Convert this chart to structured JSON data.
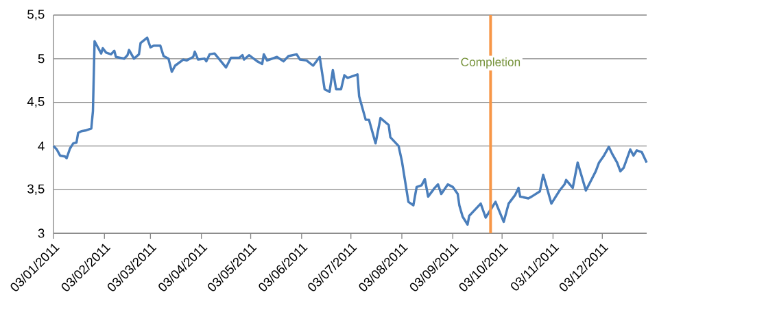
{
  "chart_data": {
    "type": "line",
    "x": [
      "2011-01-03",
      "2011-01-05",
      "2011-01-07",
      "2011-01-10",
      "2011-01-11",
      "2011-01-13",
      "2011-01-15",
      "2011-01-17",
      "2011-01-18",
      "2011-01-20",
      "2011-01-23",
      "2011-01-26",
      "2011-01-27",
      "2011-01-28",
      "2011-02-01",
      "2011-02-02",
      "2011-02-04",
      "2011-02-07",
      "2011-02-09",
      "2011-02-10",
      "2011-02-15",
      "2011-02-17",
      "2011-02-18",
      "2011-02-21",
      "2011-02-24",
      "2011-02-25",
      "2011-03-01",
      "2011-03-03",
      "2011-03-05",
      "2011-03-09",
      "2011-03-11",
      "2011-03-14",
      "2011-03-16",
      "2011-03-18",
      "2011-03-23",
      "2011-03-25",
      "2011-03-29",
      "2011-03-30",
      "2011-04-01",
      "2011-04-05",
      "2011-04-06",
      "2011-04-08",
      "2011-04-11",
      "2011-04-18",
      "2011-04-21",
      "2011-04-26",
      "2011-04-28",
      "2011-04-29",
      "2011-05-02",
      "2011-05-07",
      "2011-05-10",
      "2011-05-11",
      "2011-05-13",
      "2011-05-19",
      "2011-05-23",
      "2011-05-26",
      "2011-05-31",
      "2011-06-02",
      "2011-06-06",
      "2011-06-10",
      "2011-06-14",
      "2011-06-17",
      "2011-06-20",
      "2011-06-22",
      "2011-06-24",
      "2011-06-27",
      "2011-06-29",
      "2011-07-01",
      "2011-07-07",
      "2011-07-08",
      "2011-07-12",
      "2011-07-14",
      "2011-07-18",
      "2011-07-21",
      "2011-07-26",
      "2011-07-27",
      "2011-08-01",
      "2011-08-03",
      "2011-08-07",
      "2011-08-10",
      "2011-08-12",
      "2011-08-15",
      "2011-08-17",
      "2011-08-19",
      "2011-08-23",
      "2011-08-25",
      "2011-08-27",
      "2011-08-31",
      "2011-09-03",
      "2011-09-06",
      "2011-09-07",
      "2011-09-09",
      "2011-09-12",
      "2011-09-13",
      "2011-09-16",
      "2011-09-20",
      "2011-09-23",
      "2011-09-27",
      "2011-09-29",
      "2011-10-04",
      "2011-10-07",
      "2011-10-11",
      "2011-10-13",
      "2011-10-14",
      "2011-10-19",
      "2011-10-21",
      "2011-10-26",
      "2011-10-28",
      "2011-10-30",
      "2011-11-02",
      "2011-11-07",
      "2011-11-10",
      "2011-11-11",
      "2011-11-15",
      "2011-11-18",
      "2011-11-23",
      "2011-11-26",
      "2011-11-29",
      "2011-12-01",
      "2011-12-04",
      "2011-12-07",
      "2011-12-09",
      "2011-12-12",
      "2011-12-14",
      "2011-12-16",
      "2011-12-20",
      "2011-12-22",
      "2011-12-24",
      "2011-12-27",
      "2011-12-29",
      "2011-12-30"
    ],
    "series": [
      {
        "color": "#4a7ebb",
        "values": [
          4.0,
          3.96,
          3.89,
          3.88,
          3.86,
          3.97,
          4.03,
          4.04,
          4.15,
          4.17,
          4.18,
          4.2,
          4.4,
          5.2,
          5.06,
          5.12,
          5.07,
          5.05,
          5.09,
          5.02,
          5.0,
          5.04,
          5.1,
          5.0,
          5.05,
          5.18,
          5.24,
          5.13,
          5.15,
          5.15,
          5.03,
          5.0,
          4.85,
          4.92,
          4.99,
          4.98,
          5.02,
          5.08,
          4.99,
          5.0,
          4.97,
          5.05,
          5.06,
          4.9,
          5.01,
          5.01,
          5.04,
          4.99,
          5.04,
          4.97,
          4.94,
          5.05,
          4.98,
          5.02,
          4.97,
          5.03,
          5.05,
          4.99,
          4.98,
          4.92,
          5.02,
          4.65,
          4.62,
          4.87,
          4.65,
          4.65,
          4.81,
          4.78,
          4.82,
          4.57,
          4.3,
          4.3,
          4.03,
          4.32,
          4.24,
          4.1,
          4.0,
          3.83,
          3.36,
          3.32,
          3.53,
          3.55,
          3.62,
          3.42,
          3.52,
          3.56,
          3.45,
          3.56,
          3.53,
          3.45,
          3.32,
          3.19,
          3.1,
          3.2,
          3.26,
          3.34,
          3.18,
          3.3,
          3.36,
          3.13,
          3.34,
          3.44,
          3.52,
          3.42,
          3.4,
          3.42,
          3.48,
          3.67,
          3.54,
          3.34,
          3.49,
          3.56,
          3.61,
          3.52,
          3.81,
          3.49,
          3.6,
          3.71,
          3.81,
          3.89,
          3.99,
          3.91,
          3.81,
          3.71,
          3.75,
          3.96,
          3.89,
          3.95,
          3.93,
          3.85,
          3.81
        ]
      }
    ],
    "xlim": [
      "2011-01-03",
      "2011-12-30"
    ],
    "xticks": [
      {
        "value": "2011-01-03",
        "label": "03/01/2011"
      },
      {
        "value": "2011-02-03",
        "label": "03/02/2011"
      },
      {
        "value": "2011-03-03",
        "label": "03/03/2011"
      },
      {
        "value": "2011-04-03",
        "label": "03/04/2011"
      },
      {
        "value": "2011-05-03",
        "label": "03/05/2011"
      },
      {
        "value": "2011-06-03",
        "label": "03/06/2011"
      },
      {
        "value": "2011-07-03",
        "label": "03/07/2011"
      },
      {
        "value": "2011-08-03",
        "label": "03/08/2011"
      },
      {
        "value": "2011-09-03",
        "label": "03/09/2011"
      },
      {
        "value": "2011-10-03",
        "label": "03/10/2011"
      },
      {
        "value": "2011-11-03",
        "label": "03/11/2011"
      },
      {
        "value": "2011-12-03",
        "label": "03/12/2011"
      }
    ],
    "ylim": [
      3,
      5.5
    ],
    "yticks": [
      {
        "value": 3,
        "label": "3"
      },
      {
        "value": 3.5,
        "label": "3,5"
      },
      {
        "value": 4,
        "label": "4"
      },
      {
        "value": 4.5,
        "label": "4,5"
      },
      {
        "value": 5,
        "label": "5"
      },
      {
        "value": 5.5,
        "label": "5,5"
      }
    ],
    "grid": "y",
    "ref_lines": [
      {
        "axis": "x",
        "value": "2011-09-26",
        "label": "Completion",
        "color": "#f79646"
      }
    ]
  }
}
